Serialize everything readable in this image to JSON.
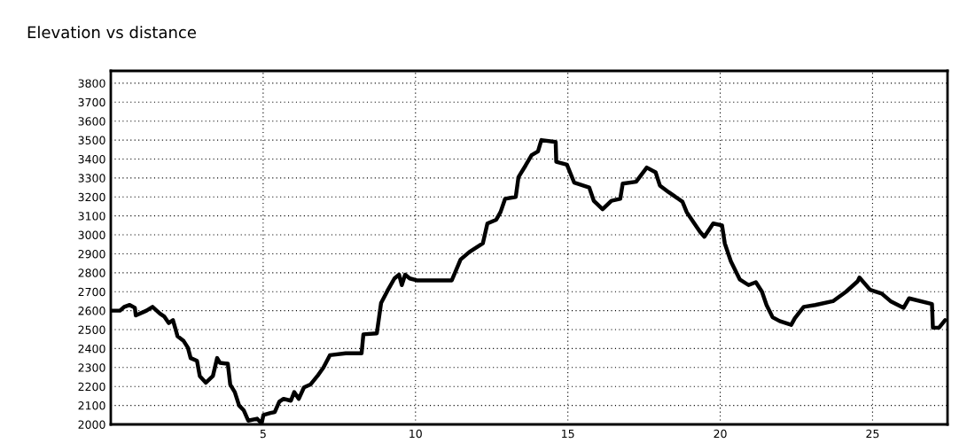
{
  "chart_data": {
    "type": "line",
    "title": "Elevation vs distance",
    "x": [
      0,
      0.3,
      0.44,
      0.62,
      0.79,
      0.82,
      1.17,
      1.37,
      1.61,
      1.75,
      1.9,
      2.04,
      2.13,
      2.19,
      2.39,
      2.53,
      2.62,
      2.83,
      2.92,
      3.12,
      3.35,
      3.49,
      3.58,
      3.84,
      3.92,
      4.07,
      4.21,
      4.36,
      4.51,
      4.8,
      4.95,
      5.01,
      5.24,
      5.38,
      5.53,
      5.67,
      5.91,
      6.02,
      6.17,
      6.34,
      6.55,
      6.78,
      6.98,
      7.19,
      7.71,
      8.23,
      8.29,
      8.73,
      8.87,
      9.08,
      9.31,
      9.46,
      9.55,
      9.66,
      9.81,
      10.04,
      11.19,
      11.48,
      11.77,
      12.21,
      12.36,
      12.65,
      12.79,
      12.94,
      13.29,
      13.38,
      13.61,
      13.81,
      14.02,
      14.13,
      14.6,
      14.62,
      14.97,
      15.21,
      15.7,
      15.85,
      16.14,
      16.43,
      16.72,
      16.8,
      17.24,
      17.59,
      17.88,
      18.02,
      18.31,
      18.76,
      18.9,
      19.34,
      19.48,
      19.77,
      20.06,
      20.15,
      20.35,
      20.64,
      20.93,
      21.17,
      21.37,
      21.52,
      21.72,
      21.95,
      22.33,
      22.45,
      22.74,
      23.12,
      23.7,
      24.13,
      24.51,
      24.57,
      24.92,
      25.3,
      25.59,
      26.02,
      26.2,
      26.95,
      26.98,
      27.18,
      27.38
    ],
    "series": [
      {
        "color": "#000000",
        "values": [
          2600,
          2600,
          2620,
          2630,
          2615,
          2575,
          2600,
          2620,
          2585,
          2570,
          2535,
          2550,
          2500,
          2465,
          2440,
          2405,
          2350,
          2335,
          2255,
          2220,
          2255,
          2350,
          2325,
          2320,
          2210,
          2170,
          2100,
          2075,
          2020,
          2030,
          2005,
          2050,
          2060,
          2065,
          2120,
          2135,
          2125,
          2170,
          2135,
          2195,
          2210,
          2255,
          2300,
          2365,
          2375,
          2375,
          2475,
          2480,
          2640,
          2705,
          2770,
          2790,
          2735,
          2790,
          2770,
          2760,
          2760,
          2870,
          2910,
          2955,
          3060,
          3080,
          3120,
          3190,
          3200,
          3305,
          3365,
          3420,
          3440,
          3500,
          3490,
          3385,
          3370,
          3275,
          3250,
          3180,
          3135,
          3180,
          3190,
          3270,
          3280,
          3355,
          3330,
          3260,
          3225,
          3175,
          3120,
          3015,
          2990,
          3060,
          3050,
          2955,
          2860,
          2765,
          2735,
          2750,
          2700,
          2630,
          2565,
          2545,
          2525,
          2560,
          2620,
          2630,
          2650,
          2700,
          2755,
          2775,
          2710,
          2690,
          2650,
          2615,
          2665,
          2635,
          2510,
          2510,
          2550
        ]
      }
    ],
    "xlim": [
      0,
      27.46
    ],
    "xticks": [
      5,
      10,
      15,
      20,
      25
    ],
    "ylim": [
      2000,
      3865
    ],
    "yticks": [
      2000,
      2100,
      2200,
      2300,
      2400,
      2500,
      2600,
      2700,
      2800,
      2900,
      3000,
      3100,
      3200,
      3300,
      3400,
      3500,
      3600,
      3700,
      3800
    ],
    "grid": true,
    "line_style": "solid",
    "legend": false
  }
}
